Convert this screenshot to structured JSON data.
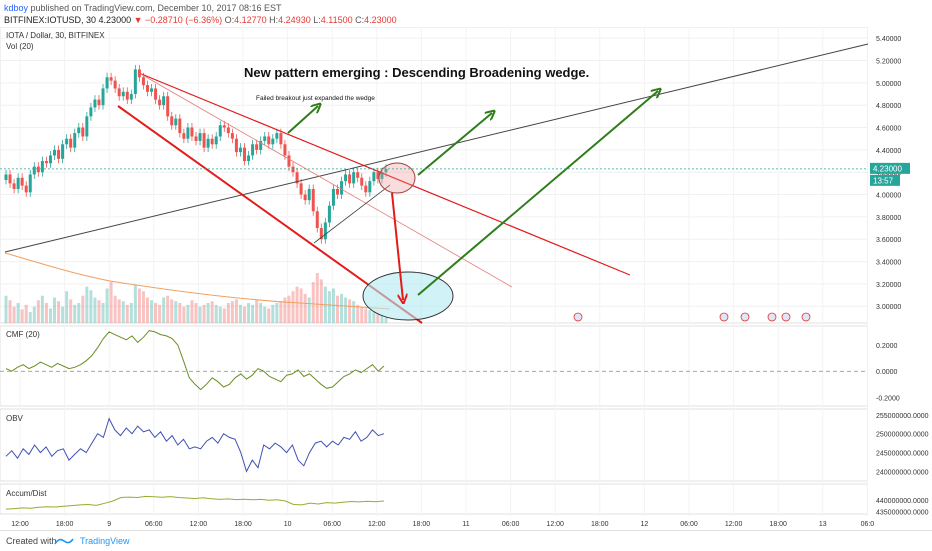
{
  "header": {
    "author": "kdboy",
    "published": "published on TradingView.com, December 10, 2017 08:16 EST",
    "symbol": "BITFINEX:IOTUSD, 30",
    "last": "4.23000",
    "change": "▼ −0.28710 (−6.36%)",
    "o_label": "O:",
    "o": "4.12770",
    "h_label": "H:",
    "h": "4.24930",
    "l_label": "L:",
    "l": "4.11500",
    "c_label": "C:",
    "c": "4.23000"
  },
  "footer": {
    "created_with": "Created with",
    "brand": "TradingView"
  },
  "colors": {
    "up": "#26a69a",
    "down": "#ef5350",
    "wedge": "#e31a1a",
    "arrow_green": "#2e7d1a",
    "arrow_red": "#e31a1a",
    "cmf_line": "#6b8e23",
    "obv_line": "#3f51b5",
    "ad_line": "#9aaa30",
    "price_badge": "#26a69a"
  },
  "chart_data": [
    {
      "type": "candlestick",
      "title": "IOTA / Dollar, 30, BITFINEX",
      "subtitle": "Vol (20)",
      "annotation_main": "New pattern emerging : Descending Broadening wedge.",
      "annotation_small": "Failed breakout just expanded the wedge",
      "ylim": [
        2.85,
        5.5
      ],
      "y_ticks": [
        "5.40000",
        "5.20000",
        "5.00000",
        "4.80000",
        "4.60000",
        "4.40000",
        "4.20000",
        "4.00000",
        "3.80000",
        "3.60000",
        "3.40000",
        "3.20000",
        "3.00000"
      ],
      "y_tick_values": [
        5.4,
        5.2,
        5.0,
        4.8,
        4.6,
        4.4,
        4.2,
        4.0,
        3.8,
        3.6,
        3.4,
        3.2,
        3.0
      ],
      "last_price_label": "4.23000",
      "countdown_label": "13:57",
      "close_series": [
        4.18,
        4.1,
        4.05,
        4.15,
        4.08,
        4.02,
        4.18,
        4.25,
        4.2,
        4.3,
        4.28,
        4.35,
        4.4,
        4.32,
        4.45,
        4.5,
        4.42,
        4.55,
        4.6,
        4.52,
        4.7,
        4.78,
        4.85,
        4.8,
        4.95,
        5.05,
        5.02,
        4.95,
        4.88,
        4.92,
        4.85,
        4.9,
        5.12,
        5.05,
        4.98,
        4.92,
        4.95,
        4.85,
        4.8,
        4.88,
        4.7,
        4.62,
        4.68,
        4.55,
        4.5,
        4.6,
        4.52,
        4.48,
        4.55,
        4.42,
        4.5,
        4.45,
        4.52,
        4.62,
        4.6,
        4.55,
        4.5,
        4.38,
        4.42,
        4.3,
        4.35,
        4.45,
        4.4,
        4.48,
        4.52,
        4.45,
        4.5,
        4.55,
        4.45,
        4.35,
        4.25,
        4.2,
        4.1,
        4.0,
        3.95,
        4.05,
        3.85,
        3.7,
        3.6,
        3.75,
        3.9,
        4.05,
        4.0,
        4.12,
        4.18,
        4.1,
        4.2,
        4.15,
        4.08,
        4.02,
        4.12,
        4.2,
        4.14,
        4.2,
        4.23
      ],
      "volume": [
        30,
        25,
        18,
        22,
        15,
        20,
        12,
        18,
        25,
        30,
        22,
        16,
        28,
        24,
        18,
        35,
        26,
        20,
        22,
        30,
        40,
        36,
        28,
        25,
        22,
        38,
        45,
        30,
        26,
        24,
        20,
        22,
        42,
        38,
        35,
        28,
        25,
        22,
        20,
        28,
        30,
        26,
        24,
        22,
        18,
        20,
        25,
        22,
        18,
        20,
        22,
        24,
        20,
        18,
        16,
        22,
        24,
        26,
        20,
        18,
        22,
        20,
        25,
        22,
        18,
        16,
        20,
        22,
        24,
        28,
        30,
        35,
        40,
        38,
        32,
        28,
        45,
        55,
        48,
        40,
        35,
        38,
        30,
        32,
        28,
        26,
        24,
        20,
        18,
        16,
        14,
        12,
        10,
        8,
        6
      ]
    },
    {
      "type": "line",
      "title": "CMF (20)",
      "ylim": [
        -0.25,
        0.33
      ],
      "y_ticks": [
        "0.2000",
        "0.0000",
        "-0.2000"
      ],
      "y_tick_values": [
        0.2,
        0.0,
        -0.2
      ],
      "values": [
        0.02,
        0.0,
        0.03,
        0.05,
        0.02,
        0.04,
        0.07,
        0.05,
        0.03,
        0.06,
        0.04,
        0.02,
        0.03,
        0.05,
        0.08,
        0.12,
        0.18,
        0.25,
        0.3,
        0.28,
        0.26,
        0.24,
        0.27,
        0.22,
        0.26,
        0.31,
        0.3,
        0.28,
        0.27,
        0.25,
        0.2,
        0.08,
        -0.05,
        -0.1,
        -0.14,
        -0.1,
        -0.05,
        -0.08,
        -0.12,
        -0.1,
        -0.05,
        -0.02,
        -0.06,
        -0.03,
        0.02,
        0.0,
        -0.04,
        -0.06,
        -0.08,
        -0.03,
        -0.02,
        0.01,
        -0.04,
        -0.02,
        -0.06,
        -0.1,
        -0.13,
        -0.12,
        -0.08,
        -0.04,
        -0.02,
        0.01,
        -0.01,
        0.02,
        0.05,
        0.0,
        0.04
      ]
    },
    {
      "type": "line",
      "title": "OBV",
      "ylim": [
        238000000,
        256000000
      ],
      "y_ticks": [
        "255000000.0000",
        "250000000.0000",
        "245000000.0000",
        "240000000.0000"
      ],
      "y_tick_values": [
        255000000,
        250000000,
        245000000,
        240000000
      ],
      "values": [
        244000000,
        245500000,
        243500000,
        246000000,
        244500000,
        247000000,
        245000000,
        246500000,
        244000000,
        245500000,
        246000000,
        243000000,
        244500000,
        246000000,
        245000000,
        247500000,
        250000000,
        249000000,
        254000000,
        251000000,
        249500000,
        251500000,
        250000000,
        252000000,
        250500000,
        251000000,
        249000000,
        250500000,
        248000000,
        249500000,
        247000000,
        248500000,
        246000000,
        246500000,
        246000000,
        248000000,
        249000000,
        247500000,
        250000000,
        249000000,
        248500000,
        245000000,
        240000000,
        243000000,
        241000000,
        247000000,
        246000000,
        247500000,
        246500000,
        245000000,
        247000000,
        243000000,
        241500000,
        245000000,
        247500000,
        248000000,
        246500000,
        248000000,
        247000000,
        249000000,
        248500000,
        250500000,
        248000000,
        249000000,
        251000000,
        249500000,
        250000000
      ]
    },
    {
      "type": "line",
      "title": "Accum/Dist",
      "ylim": [
        433000000,
        446000000
      ],
      "y_ticks": [
        "440000000.0000",
        "435000000.0000"
      ],
      "y_tick_values": [
        440000000,
        435000000
      ],
      "values": [
        436000000,
        436200000,
        436500000,
        436400000,
        436800000,
        437000000,
        436900000,
        437200000,
        437500000,
        437800000,
        438000000,
        437600000,
        438500000,
        439500000,
        441000000,
        441200000,
        441000000,
        441500000,
        441300000,
        441100000,
        441400000,
        441000000,
        440800000,
        440600000,
        440900000,
        440500000,
        440200000,
        440400000,
        440100000,
        440300000,
        440000000,
        440200000,
        439800000,
        440000000,
        439500000,
        438000000,
        437800000,
        438600000,
        438200000,
        438800000,
        438600000,
        439000000,
        439300000,
        439100000,
        439400000,
        439200000,
        439500000
      ]
    },
    {
      "type": "axis",
      "x_ticks": [
        "12:00",
        "18:00",
        "9",
        "06:00",
        "12:00",
        "18:00",
        "10",
        "06:00",
        "12:00",
        "18:00",
        "11",
        "06:00",
        "12:00",
        "18:00",
        "12",
        "06:00",
        "12:00",
        "18:00",
        "13",
        "06:0"
      ]
    }
  ]
}
